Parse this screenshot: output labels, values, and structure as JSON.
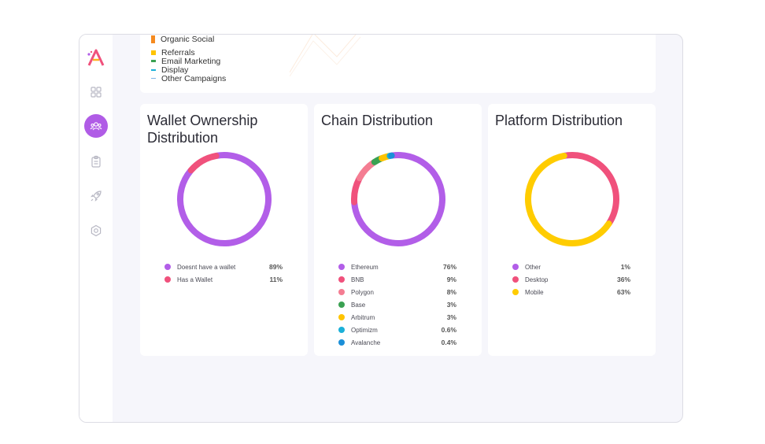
{
  "top_legend": [
    {
      "label": "Organic Social",
      "color": "#f58a1f"
    },
    {
      "label": "Referrals",
      "color": "#ffc400"
    },
    {
      "label": "Email Marketing",
      "color": "#3aa152"
    },
    {
      "label": "Display",
      "color": "#1bb0d8"
    },
    {
      "label": "Other Campaigns",
      "color": "#7fb3e6"
    }
  ],
  "sidebar": {
    "items": [
      {
        "icon": "grid-icon"
      },
      {
        "icon": "users-icon",
        "active": true
      },
      {
        "icon": "clipboard-icon"
      },
      {
        "icon": "rocket-icon"
      },
      {
        "icon": "settings-icon"
      }
    ]
  },
  "cards": [
    {
      "title": "Wallet Ownership Distribution",
      "items": [
        {
          "label": "Doesnt have a wallet",
          "value": "89%",
          "pct": 89,
          "color": "#b25ee8"
        },
        {
          "label": "Has a Wallet",
          "value": "11%",
          "pct": 11,
          "color": "#f0517c"
        }
      ]
    },
    {
      "title": "Chain Distribution",
      "items": [
        {
          "label": "Ethereum",
          "value": "76%",
          "pct": 76,
          "color": "#b25ee8"
        },
        {
          "label": "BNB",
          "value": "9%",
          "pct": 9,
          "color": "#f0517c"
        },
        {
          "label": "Polygon",
          "value": "8%",
          "pct": 8,
          "color": "#f47d92"
        },
        {
          "label": "Base",
          "value": "3%",
          "pct": 3,
          "color": "#3aa152"
        },
        {
          "label": "Arbitrum",
          "value": "3%",
          "pct": 3,
          "color": "#ffc400"
        },
        {
          "label": "Optimizm",
          "value": "0.6%",
          "pct": 0.6,
          "color": "#1bb0d8"
        },
        {
          "label": "Avalanche",
          "value": "0.4%",
          "pct": 0.4,
          "color": "#1b8fd8"
        }
      ]
    },
    {
      "title": "Platform Distribution",
      "items": [
        {
          "label": "Other",
          "value": "1%",
          "pct": 1,
          "color": "#b25ee8"
        },
        {
          "label": "Desktop",
          "value": "36%",
          "pct": 36,
          "color": "#f0517c"
        },
        {
          "label": "Mobile",
          "value": "63%",
          "pct": 63,
          "color": "#ffcc00"
        }
      ]
    }
  ]
}
